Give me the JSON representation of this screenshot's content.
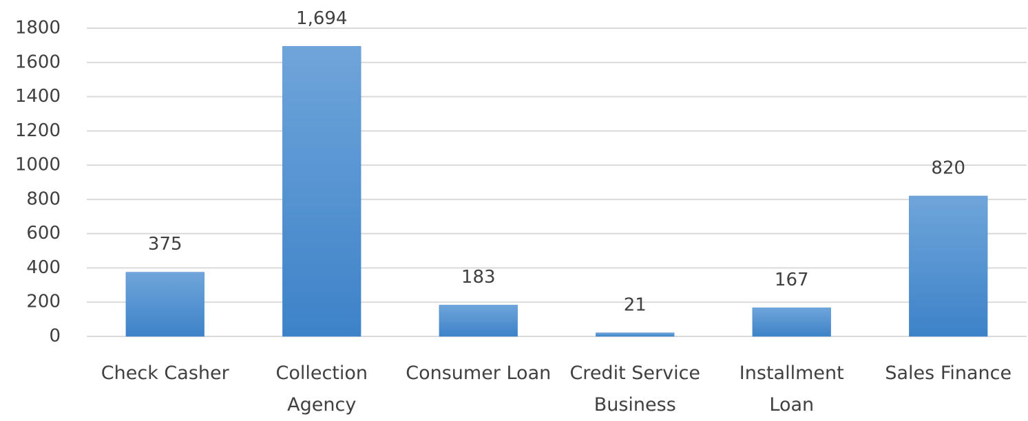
{
  "chart_data": {
    "type": "bar",
    "categories": [
      "Check Casher",
      "Collection Agency",
      "Consumer Loan",
      "Credit Service Business",
      "Installment Loan",
      "Sales Finance"
    ],
    "values": [
      375,
      1694,
      183,
      21,
      167,
      820
    ],
    "value_labels": [
      "375",
      "1,694",
      "183",
      "21",
      "167",
      "820"
    ],
    "color": "#4a8bd0",
    "ylim": [
      0,
      1800
    ],
    "yticks": [
      0,
      200,
      400,
      600,
      800,
      1000,
      1200,
      1400,
      1600,
      1800
    ],
    "grid": true
  }
}
